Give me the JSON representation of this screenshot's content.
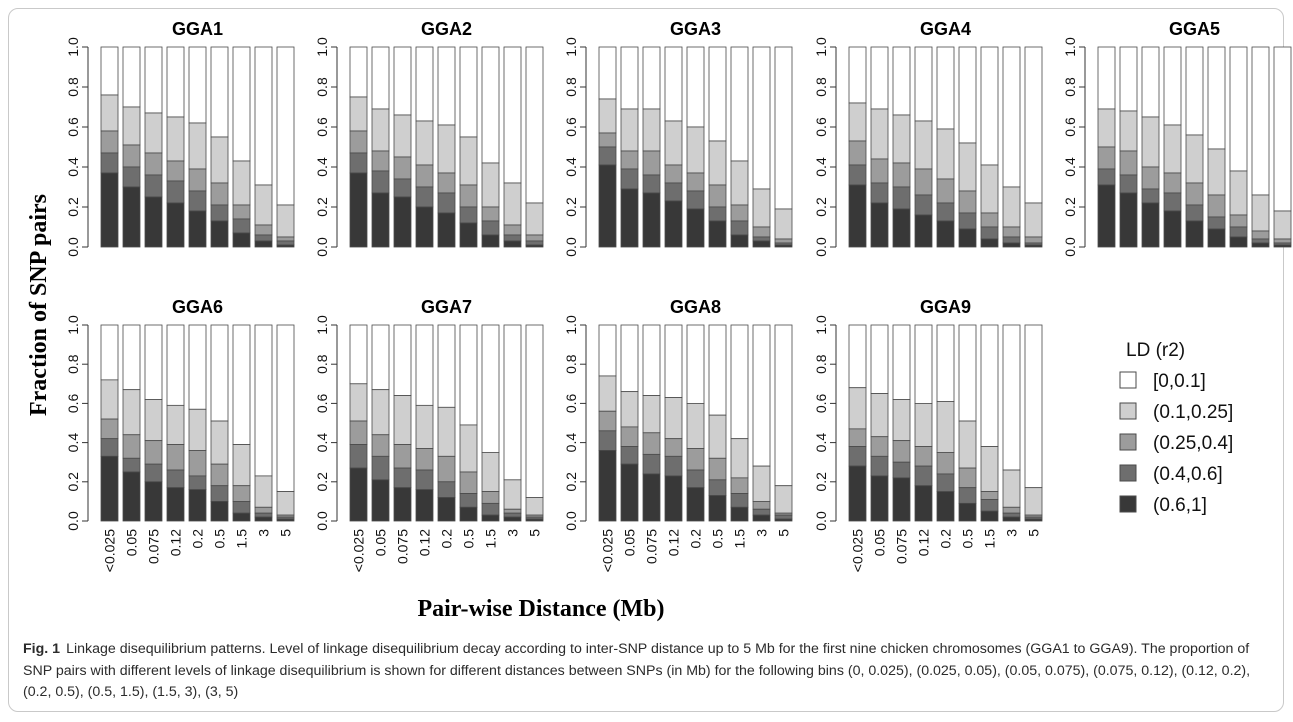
{
  "chart_data": {
    "type": "bar",
    "stacked": true,
    "y_axis_label": "Fraction of SNP pairs",
    "x_axis_label": "Pair-wise Distance (Mb)",
    "ylim": [
      0,
      1
    ],
    "y_ticks": [
      "0.0",
      "0.2",
      "0.4",
      "0.6",
      "0.8",
      "1.0"
    ],
    "categories": [
      "<0.025",
      "0.05",
      "0.075",
      "0.12",
      "0.2",
      "0.5",
      "1.5",
      "3",
      "5"
    ],
    "legend": {
      "title": "LD (r2)",
      "placement": "right",
      "entries": [
        {
          "label": "[0,0.1]",
          "color": "#ffffff"
        },
        {
          "label": "(0.1,0.25]",
          "color": "#cfcfcf"
        },
        {
          "label": "(0.25,0.4]",
          "color": "#9c9c9c"
        },
        {
          "label": "(0.4,0.6]",
          "color": "#6e6e6e"
        },
        {
          "label": "(0.6,1]",
          "color": "#383838"
        }
      ]
    },
    "panels": [
      {
        "title": "GGA1",
        "c1": [
          0.37,
          0.3,
          0.25,
          0.22,
          0.18,
          0.13,
          0.07,
          0.03,
          0.01
        ],
        "c2": [
          0.47,
          0.4,
          0.36,
          0.33,
          0.28,
          0.21,
          0.14,
          0.06,
          0.03
        ],
        "c3": [
          0.58,
          0.51,
          0.47,
          0.43,
          0.39,
          0.32,
          0.21,
          0.11,
          0.05
        ],
        "c4": [
          0.76,
          0.7,
          0.67,
          0.65,
          0.62,
          0.55,
          0.43,
          0.31,
          0.21
        ]
      },
      {
        "title": "GGA2",
        "c1": [
          0.37,
          0.27,
          0.25,
          0.2,
          0.17,
          0.12,
          0.06,
          0.03,
          0.01
        ],
        "c2": [
          0.47,
          0.38,
          0.34,
          0.3,
          0.27,
          0.2,
          0.13,
          0.06,
          0.03
        ],
        "c3": [
          0.58,
          0.48,
          0.45,
          0.41,
          0.37,
          0.31,
          0.2,
          0.11,
          0.06
        ],
        "c4": [
          0.75,
          0.69,
          0.66,
          0.63,
          0.61,
          0.55,
          0.42,
          0.32,
          0.22
        ]
      },
      {
        "title": "GGA3",
        "c1": [
          0.41,
          0.29,
          0.27,
          0.23,
          0.19,
          0.13,
          0.06,
          0.03,
          0.01
        ],
        "c2": [
          0.5,
          0.39,
          0.36,
          0.32,
          0.28,
          0.2,
          0.13,
          0.05,
          0.02
        ],
        "c3": [
          0.57,
          0.48,
          0.48,
          0.41,
          0.37,
          0.31,
          0.21,
          0.1,
          0.04
        ],
        "c4": [
          0.74,
          0.69,
          0.69,
          0.63,
          0.6,
          0.53,
          0.43,
          0.29,
          0.19
        ]
      },
      {
        "title": "GGA4",
        "c1": [
          0.31,
          0.22,
          0.19,
          0.16,
          0.13,
          0.09,
          0.04,
          0.02,
          0.01
        ],
        "c2": [
          0.41,
          0.32,
          0.3,
          0.26,
          0.22,
          0.17,
          0.1,
          0.05,
          0.02
        ],
        "c3": [
          0.53,
          0.44,
          0.42,
          0.39,
          0.34,
          0.28,
          0.17,
          0.1,
          0.05
        ],
        "c4": [
          0.72,
          0.69,
          0.66,
          0.63,
          0.59,
          0.52,
          0.41,
          0.3,
          0.22
        ]
      },
      {
        "title": "GGA5",
        "c1": [
          0.31,
          0.27,
          0.22,
          0.18,
          0.13,
          0.09,
          0.05,
          0.02,
          0.01
        ],
        "c2": [
          0.39,
          0.36,
          0.29,
          0.27,
          0.21,
          0.15,
          0.1,
          0.04,
          0.02
        ],
        "c3": [
          0.5,
          0.48,
          0.4,
          0.37,
          0.32,
          0.26,
          0.16,
          0.08,
          0.04
        ],
        "c4": [
          0.69,
          0.68,
          0.65,
          0.61,
          0.56,
          0.49,
          0.38,
          0.26,
          0.18
        ]
      },
      {
        "title": "GGA6",
        "c1": [
          0.33,
          0.25,
          0.2,
          0.17,
          0.16,
          0.1,
          0.04,
          0.02,
          0.01
        ],
        "c2": [
          0.42,
          0.32,
          0.29,
          0.26,
          0.23,
          0.18,
          0.1,
          0.04,
          0.02
        ],
        "c3": [
          0.52,
          0.44,
          0.41,
          0.39,
          0.36,
          0.29,
          0.18,
          0.07,
          0.03
        ],
        "c4": [
          0.72,
          0.67,
          0.62,
          0.59,
          0.57,
          0.51,
          0.39,
          0.23,
          0.15
        ]
      },
      {
        "title": "GGA7",
        "c1": [
          0.27,
          0.21,
          0.17,
          0.16,
          0.12,
          0.07,
          0.03,
          0.02,
          0.01
        ],
        "c2": [
          0.39,
          0.33,
          0.27,
          0.26,
          0.2,
          0.14,
          0.09,
          0.04,
          0.02
        ],
        "c3": [
          0.51,
          0.44,
          0.39,
          0.37,
          0.33,
          0.25,
          0.15,
          0.06,
          0.03
        ],
        "c4": [
          0.7,
          0.67,
          0.64,
          0.59,
          0.58,
          0.49,
          0.35,
          0.21,
          0.12
        ]
      },
      {
        "title": "GGA8",
        "c1": [
          0.36,
          0.29,
          0.24,
          0.23,
          0.17,
          0.13,
          0.07,
          0.03,
          0.01
        ],
        "c2": [
          0.46,
          0.38,
          0.34,
          0.33,
          0.26,
          0.21,
          0.14,
          0.06,
          0.03
        ],
        "c3": [
          0.56,
          0.48,
          0.45,
          0.42,
          0.37,
          0.32,
          0.22,
          0.1,
          0.04
        ],
        "c4": [
          0.74,
          0.66,
          0.64,
          0.63,
          0.6,
          0.54,
          0.42,
          0.28,
          0.18
        ]
      },
      {
        "title": "GGA9",
        "c1": [
          0.28,
          0.23,
          0.22,
          0.18,
          0.15,
          0.09,
          0.05,
          0.02,
          0.01
        ],
        "c2": [
          0.38,
          0.33,
          0.3,
          0.28,
          0.24,
          0.17,
          0.11,
          0.04,
          0.02
        ],
        "c3": [
          0.47,
          0.43,
          0.41,
          0.38,
          0.35,
          0.27,
          0.15,
          0.07,
          0.03
        ],
        "c4": [
          0.68,
          0.65,
          0.62,
          0.6,
          0.61,
          0.51,
          0.38,
          0.26,
          0.17
        ]
      }
    ]
  },
  "caption": {
    "label": "Fig. 1",
    "text": "Linkage disequilibrium patterns. Level of linkage disequilibrium decay according to inter-SNP distance up to 5 Mb for the first nine chicken chromosomes (GGA1 to GGA9). The proportion of SNP pairs with different levels of linkage disequilibrium is shown for different distances between SNPs (in Mb) for the following bins (0, 0.025), (0.025, 0.05), (0.05, 0.075), (0.075, 0.12), (0.12, 0.2), (0.2, 0.5), (0.5, 1.5), (1.5, 3), (3, 5)"
  }
}
